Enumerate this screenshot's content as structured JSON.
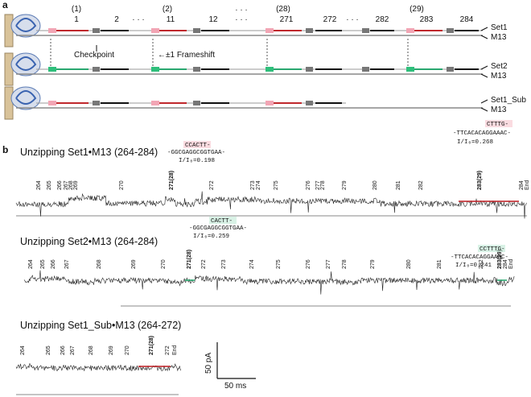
{
  "panel_a": {
    "label": "a",
    "top_groups": [
      "(1)",
      "(2)",
      "(28)",
      "(29)"
    ],
    "top_numbers": [
      "1",
      "2",
      "11",
      "12",
      "271",
      "272",
      "282",
      "283",
      "284"
    ],
    "row_labels": [
      [
        "Set1",
        "M13"
      ],
      [
        "Set2",
        "M13"
      ],
      [
        "Set1_Sub",
        "M13"
      ]
    ],
    "checkpoint": "Checkpoint",
    "frameshift": "←±1 Frameshift"
  },
  "panel_b": {
    "label": "b",
    "traces": [
      {
        "title": "Unzipping Set1•M13 (264-284)",
        "steps": [
          "264",
          "265",
          "266",
          "267",
          "268",
          "269",
          "270",
          "271(28)",
          "272",
          "273",
          "274",
          "275",
          "276",
          "277",
          "278",
          "279",
          "280",
          "281",
          "282",
          "283(29)",
          "284",
          "End"
        ],
        "annotations": [
          [
            "CCACTT-",
            "-GGCGAGGCGGTGAA-",
            "I/I₀=0.198"
          ],
          [
            "CTTTG-",
            "-TTCACACAGGAAAC-",
            "I/I₀=0.268"
          ]
        ]
      },
      {
        "title": "Unzipping Set2•M13 (264-284)",
        "steps": [
          "264",
          "265",
          "266",
          "267",
          "268",
          "269",
          "270",
          "271(28)",
          "272",
          "273",
          "274",
          "275",
          "276",
          "277",
          "278",
          "279",
          "280",
          "281",
          "282",
          "283(29)",
          "284",
          "End"
        ],
        "annotations": [
          [
            "CACTT-",
            "-GGCGAGGCGGTGAA-",
            "I/I₀=0.259"
          ],
          [
            "CCTTTG-",
            "-TTCACACAGGAAAC-",
            "I/I₀=0.241"
          ]
        ]
      },
      {
        "title": "Unzipping Set1_Sub•M13 (264-272)",
        "steps": [
          "264",
          "265",
          "266",
          "267",
          "268",
          "269",
          "270",
          "271(28)",
          "272",
          "End"
        ],
        "annotations": []
      }
    ],
    "scale_current": "50 pA",
    "scale_time": "50 ms"
  }
}
